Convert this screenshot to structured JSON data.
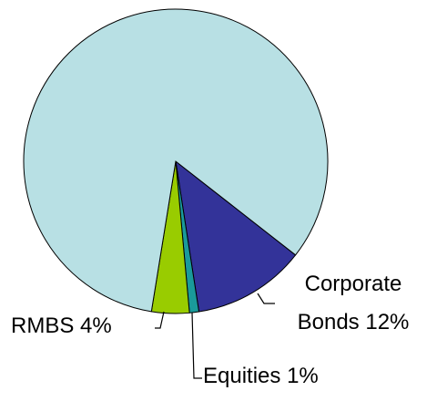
{
  "chart_data": {
    "type": "pie",
    "categories": [
      "Corporate Bonds",
      "Equities",
      "RMBS",
      null
    ],
    "values": [
      12,
      1,
      4,
      83
    ],
    "value_labels": [
      "12%",
      "1%",
      "4%",
      null
    ],
    "colors": [
      "#333399",
      "#1a9a9a",
      "#99cc00",
      "#b8e0e4"
    ]
  }
}
